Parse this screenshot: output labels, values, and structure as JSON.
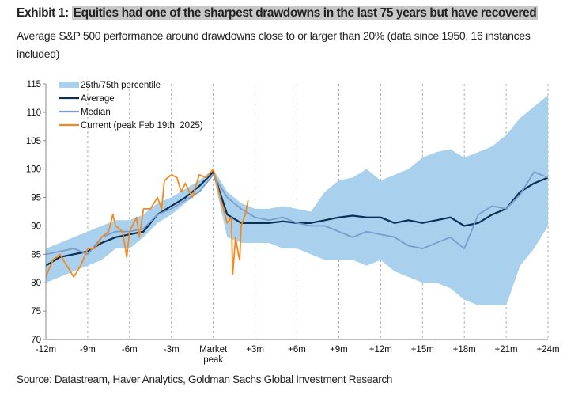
{
  "header": {
    "exhibit": "Exhibit 1:",
    "title": "Equities had one of the sharpest drawdowns in the last 75 years but have recovered",
    "subtitle": "Average S&P 500 performance around drawdowns close to or larger than 20% (data since 1950, 16 instances included)"
  },
  "source": "Source: Datastream, Haver Analytics, Goldman Sachs Global Investment Research",
  "chart_data": {
    "type": "line",
    "xlim": [
      -12,
      24
    ],
    "ylim": [
      70,
      115
    ],
    "yticks": [
      70,
      75,
      80,
      85,
      90,
      95,
      100,
      105,
      110,
      115
    ],
    "xticks": [
      {
        "v": -12,
        "l": "-12m"
      },
      {
        "v": -9,
        "l": "-9m"
      },
      {
        "v": -6,
        "l": "-6m"
      },
      {
        "v": -3,
        "l": "-3m"
      },
      {
        "v": 0,
        "l": "Market",
        "l2": "peak"
      },
      {
        "v": 3,
        "l": "+3m"
      },
      {
        "v": 6,
        "l": "+6m"
      },
      {
        "v": 9,
        "l": "+9m"
      },
      {
        "v": 12,
        "l": "+12m"
      },
      {
        "v": 15,
        "l": "+15m"
      },
      {
        "v": 18,
        "l": "+18m"
      },
      {
        "v": 21,
        "l": "+21m"
      },
      {
        "v": 24,
        "l": "+24m"
      }
    ],
    "grid": "vertical dashed",
    "legend": "top-left",
    "band": {
      "name": "25th/75th percentile",
      "color": "#a9d1ee",
      "x": [
        -12,
        -11,
        -10,
        -9,
        -8,
        -7,
        -6,
        -5,
        -4,
        -3,
        -2,
        -1,
        0,
        1,
        2,
        3,
        4,
        5,
        6,
        7,
        8,
        9,
        10,
        11,
        12,
        13,
        14,
        15,
        16,
        17,
        18,
        19,
        20,
        21,
        22,
        23,
        24
      ],
      "low": [
        80,
        81,
        82,
        83,
        84,
        86,
        86,
        88,
        90.5,
        92,
        94,
        96,
        99,
        88,
        87,
        87,
        87,
        86,
        86,
        85,
        84,
        84,
        84,
        83,
        84,
        82,
        81,
        80,
        80,
        79,
        77,
        76,
        76,
        76,
        83,
        86,
        90
      ],
      "high": [
        86,
        87,
        88,
        89,
        90,
        91,
        91,
        92,
        94,
        95,
        96.5,
        98,
        100,
        96,
        94,
        93,
        93,
        93.5,
        93,
        92.5,
        96,
        98,
        98.5,
        100,
        98,
        99,
        100,
        102,
        103,
        103.5,
        102,
        103,
        104,
        106,
        109,
        111,
        113
      ]
    },
    "series": [
      {
        "name": "Average",
        "color": "#0b2f55",
        "x": [
          -12,
          -11,
          -10,
          -9,
          -8,
          -7,
          -6,
          -5,
          -4,
          -3,
          -2,
          -1,
          0,
          1,
          2,
          3,
          4,
          5,
          6,
          7,
          8,
          9,
          10,
          11,
          12,
          13,
          14,
          15,
          16,
          17,
          18,
          19,
          20,
          21,
          22,
          23,
          24
        ],
        "y": [
          83,
          84.5,
          85,
          85.5,
          87,
          88,
          88.5,
          89,
          92,
          93.5,
          95,
          97,
          99.5,
          92,
          90.5,
          90.5,
          90.5,
          90.8,
          90.5,
          90.5,
          91,
          91.5,
          91.8,
          91.5,
          91.5,
          90.5,
          91,
          90.5,
          91,
          91.5,
          90,
          90.5,
          92,
          93,
          96,
          97.5,
          98.5
        ]
      },
      {
        "name": "Median",
        "color": "#7b9ccc",
        "x": [
          -12,
          -11,
          -10,
          -9,
          -8,
          -7,
          -6,
          -5,
          -4,
          -3,
          -2,
          -1,
          0,
          1,
          2,
          3,
          4,
          5,
          6,
          7,
          8,
          9,
          10,
          11,
          12,
          13,
          14,
          15,
          16,
          17,
          18,
          19,
          20,
          21,
          22,
          23,
          24
        ],
        "y": [
          85,
          85.5,
          86,
          85,
          88,
          89,
          89,
          89.5,
          92,
          93,
          94.5,
          96,
          99,
          95,
          93,
          91.5,
          91,
          91.5,
          90.5,
          90,
          90,
          89,
          88,
          89,
          88.5,
          88,
          86.5,
          86,
          87,
          88,
          86,
          92,
          93.5,
          93,
          95.5,
          99.5,
          98.5
        ]
      },
      {
        "name": "Current (peak Feb 19th, 2025)",
        "color": "#f28a22",
        "x": [
          -12,
          -11.5,
          -11,
          -10.5,
          -10,
          -9.5,
          -9,
          -8.5,
          -8,
          -7.5,
          -7.2,
          -7,
          -6.5,
          -6.2,
          -6,
          -5.5,
          -5.3,
          -5,
          -4.5,
          -4,
          -3.7,
          -3.5,
          -3,
          -2.6,
          -2.3,
          -2,
          -1.5,
          -1,
          -0.5,
          0,
          0.5,
          1,
          1.3,
          1.4,
          1.6,
          1.8,
          1.9,
          2,
          2.3,
          2.5
        ],
        "y": [
          81,
          84,
          85,
          83,
          81,
          83,
          86,
          86,
          88,
          89,
          92,
          90,
          89,
          84.5,
          89,
          91.5,
          88,
          93,
          93,
          95,
          93,
          98,
          99,
          98.5,
          96,
          97.5,
          95,
          99,
          98.5,
          100,
          95,
          90.5,
          91.5,
          81.5,
          88,
          85,
          84,
          90,
          92,
          94.5
        ]
      }
    ]
  }
}
